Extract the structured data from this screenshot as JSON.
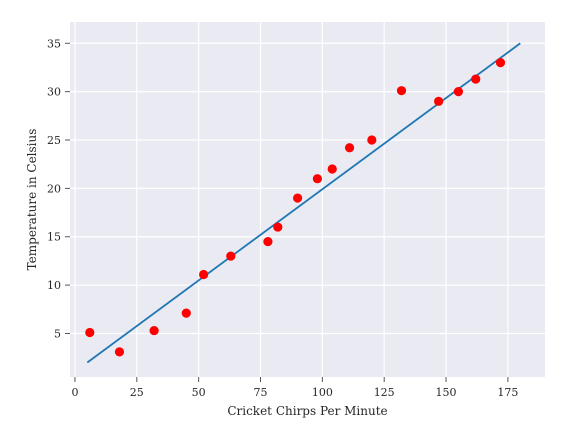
{
  "chart_data": {
    "type": "scatter",
    "xlabel": "Cricket Chirps Per Minute",
    "ylabel": "Temperature in Celsius",
    "xlim": [
      -2,
      190
    ],
    "ylim": [
      0.5,
      37.2
    ],
    "xticks": [
      0,
      25,
      50,
      75,
      100,
      125,
      150,
      175
    ],
    "yticks": [
      5,
      10,
      15,
      20,
      25,
      30,
      35
    ],
    "grid": true,
    "background_color": "#eaeaf2",
    "series": [
      {
        "kind": "scatter",
        "color": "#ff0000",
        "points": [
          {
            "x": 6,
            "y": 5.1
          },
          {
            "x": 18,
            "y": 3.1
          },
          {
            "x": 32,
            "y": 5.3
          },
          {
            "x": 45,
            "y": 7.1
          },
          {
            "x": 52,
            "y": 11.1
          },
          {
            "x": 63,
            "y": 13.0
          },
          {
            "x": 78,
            "y": 14.5
          },
          {
            "x": 82,
            "y": 16.0
          },
          {
            "x": 90,
            "y": 19.0
          },
          {
            "x": 98,
            "y": 21.0
          },
          {
            "x": 104,
            "y": 22.0
          },
          {
            "x": 111,
            "y": 24.2
          },
          {
            "x": 120,
            "y": 25.0
          },
          {
            "x": 132,
            "y": 30.1
          },
          {
            "x": 147,
            "y": 29.0
          },
          {
            "x": 155,
            "y": 30.0
          },
          {
            "x": 162,
            "y": 31.3
          },
          {
            "x": 172,
            "y": 33.0
          }
        ]
      },
      {
        "kind": "line",
        "color": "#1f77b4",
        "points": [
          {
            "x": 5,
            "y": 2.0
          },
          {
            "x": 180,
            "y": 35.0
          }
        ]
      }
    ]
  }
}
